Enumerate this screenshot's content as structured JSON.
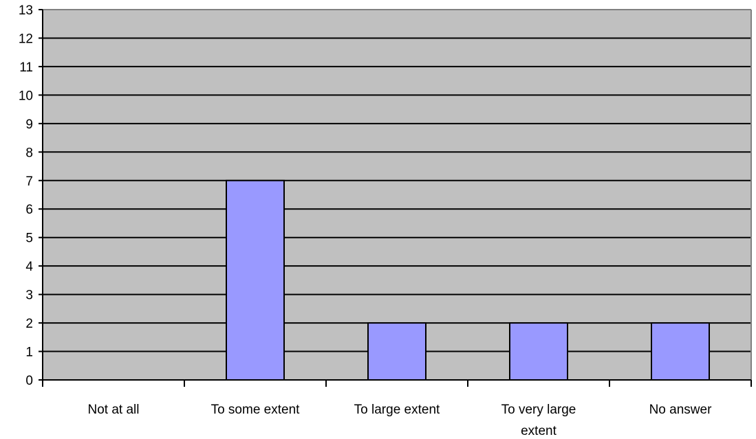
{
  "chart_data": {
    "type": "bar",
    "title": "",
    "xlabel": "",
    "ylabel": "",
    "categories": [
      "Not at all",
      "To some extent",
      "To large extent",
      "To very large extent",
      "No answer"
    ],
    "category_lines": [
      [
        "Not at all"
      ],
      [
        "To some extent"
      ],
      [
        "To large extent"
      ],
      [
        "To very large",
        "extent"
      ],
      [
        "No answer"
      ]
    ],
    "values": [
      0,
      7,
      2,
      2,
      2
    ],
    "ylim": [
      0,
      13
    ],
    "yticks": [
      0,
      1,
      2,
      3,
      4,
      5,
      6,
      7,
      8,
      9,
      10,
      11,
      12,
      13
    ],
    "grid": true,
    "legend": "none",
    "colors": {
      "plot_background": "#c0c0c0",
      "bar_fill": "#9999ff",
      "bar_stroke": "#000000",
      "grid": "#000000",
      "plot_border": "#808080"
    }
  }
}
